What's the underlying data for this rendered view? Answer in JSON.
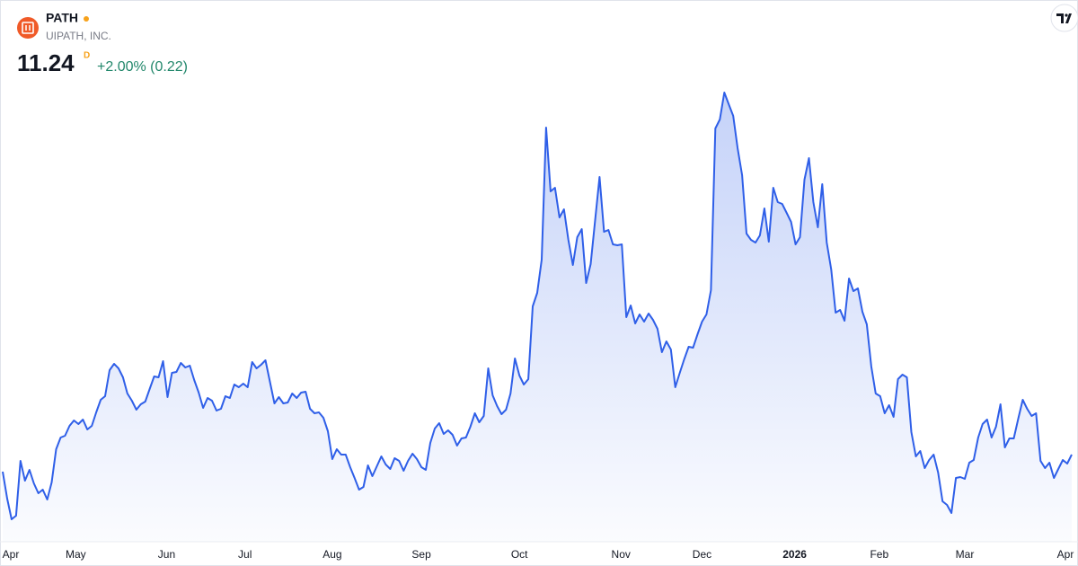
{
  "chart_data": {
    "type": "area",
    "title": "PATH",
    "subtitle": "UIPATH, INC.",
    "price": 11.24,
    "price_suffix": "D",
    "change_label": "+2.00% (0.22)",
    "color": "#2f5fe8",
    "ylim": [
      9,
      20
    ],
    "xlim": [
      0,
      240
    ],
    "xticks": [
      {
        "value": 1.5,
        "label": "Apr"
      },
      {
        "value": 16.4,
        "label": "May"
      },
      {
        "value": 36.8,
        "label": "Jun"
      },
      {
        "value": 54.4,
        "label": "Jul"
      },
      {
        "value": 74,
        "label": "Aug"
      },
      {
        "value": 94,
        "label": "Sep"
      },
      {
        "value": 116,
        "label": "Oct"
      },
      {
        "value": 138.8,
        "label": "Nov"
      },
      {
        "value": 157,
        "label": "Dec"
      },
      {
        "value": 177.8,
        "label": "2026"
      },
      {
        "value": 196.8,
        "label": "Feb"
      },
      {
        "value": 216,
        "label": "Mar"
      },
      {
        "value": 238.6,
        "label": "Apr"
      }
    ],
    "values": [
      10.86,
      10.26,
      9.8,
      9.88,
      11.1,
      10.66,
      10.9,
      10.6,
      10.38,
      10.46,
      10.24,
      10.62,
      11.36,
      11.62,
      11.66,
      11.88,
      12.0,
      11.92,
      12.02,
      11.8,
      11.88,
      12.18,
      12.46,
      12.54,
      13.12,
      13.26,
      13.16,
      12.96,
      12.6,
      12.44,
      12.24,
      12.36,
      12.42,
      12.7,
      12.98,
      12.96,
      13.32,
      12.52,
      13.06,
      13.08,
      13.28,
      13.18,
      13.22,
      12.9,
      12.62,
      12.28,
      12.5,
      12.44,
      12.22,
      12.26,
      12.54,
      12.5,
      12.8,
      12.74,
      12.82,
      12.74,
      13.3,
      13.16,
      13.24,
      13.34,
      12.86,
      12.38,
      12.52,
      12.38,
      12.4,
      12.6,
      12.5,
      12.62,
      12.64,
      12.26,
      12.16,
      12.18,
      12.06,
      11.76,
      11.14,
      11.36,
      11.24,
      11.24,
      10.96,
      10.72,
      10.46,
      10.52,
      11.0,
      10.76,
      10.98,
      11.2,
      11.02,
      10.92,
      11.16,
      11.1,
      10.88,
      11.1,
      11.26,
      11.14,
      10.96,
      10.9,
      11.5,
      11.82,
      11.94,
      11.7,
      11.78,
      11.68,
      11.44,
      11.6,
      11.62,
      11.86,
      12.16,
      11.96,
      12.1,
      13.16,
      12.56,
      12.32,
      12.14,
      12.24,
      12.6,
      13.38,
      13.0,
      12.8,
      12.92,
      14.54,
      14.84,
      15.58,
      18.52,
      17.1,
      17.18,
      16.52,
      16.7,
      16.02,
      15.46,
      16.08,
      16.26,
      15.06,
      15.48,
      16.46,
      17.42,
      16.2,
      16.24,
      15.92,
      15.9,
      15.92,
      14.3,
      14.56,
      14.16,
      14.36,
      14.2,
      14.38,
      14.24,
      14.04,
      13.52,
      13.76,
      13.58,
      12.74,
      13.06,
      13.36,
      13.64,
      13.62,
      13.92,
      14.2,
      14.36,
      14.9,
      18.5,
      18.7,
      19.3,
      19.04,
      18.78,
      18.06,
      17.46,
      16.16,
      16.02,
      15.96,
      16.12,
      16.72,
      15.98,
      17.18,
      16.86,
      16.82,
      16.62,
      16.42,
      15.92,
      16.08,
      17.36,
      17.84,
      16.86,
      16.3,
      17.26,
      15.96,
      15.36,
      14.4,
      14.46,
      14.22,
      15.16,
      14.88,
      14.94,
      14.42,
      14.14,
      13.2,
      12.6,
      12.54,
      12.16,
      12.34,
      12.08,
      12.92,
      13.02,
      12.96,
      11.74,
      11.2,
      11.32,
      10.94,
      11.12,
      11.24,
      10.84,
      10.2,
      10.12,
      9.94,
      10.72,
      10.74,
      10.7,
      11.06,
      11.12,
      11.62,
      11.92,
      12.02,
      11.62,
      11.86,
      12.36,
      11.4,
      11.6,
      11.6,
      12.04,
      12.46,
      12.26,
      12.1,
      12.16,
      11.1,
      10.94,
      11.06,
      10.72,
      10.92,
      11.12,
      11.04,
      11.24
    ]
  }
}
